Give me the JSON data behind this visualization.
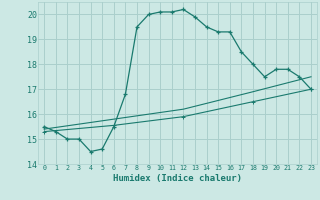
{
  "xlabel": "Humidex (Indice chaleur)",
  "ylabel": "",
  "bg_color": "#cce8e4",
  "grid_color": "#aacfcc",
  "line_color": "#1a7a6e",
  "xlim": [
    -0.5,
    23.5
  ],
  "ylim": [
    14,
    20.5
  ],
  "xticks": [
    0,
    1,
    2,
    3,
    4,
    5,
    6,
    7,
    8,
    9,
    10,
    11,
    12,
    13,
    14,
    15,
    16,
    17,
    18,
    19,
    20,
    21,
    22,
    23
  ],
  "yticks": [
    14,
    15,
    16,
    17,
    18,
    19,
    20
  ],
  "line1_x": [
    0,
    1,
    2,
    3,
    4,
    5,
    6,
    7,
    8,
    9,
    10,
    11,
    12,
    13,
    14,
    15,
    16,
    17,
    18,
    19,
    20,
    21,
    22,
    23
  ],
  "line1_y": [
    15.5,
    15.3,
    15.0,
    15.0,
    14.5,
    14.6,
    15.5,
    16.8,
    19.5,
    20.0,
    20.1,
    20.1,
    20.2,
    19.9,
    19.5,
    19.3,
    19.3,
    18.5,
    18.0,
    17.5,
    17.8,
    17.8,
    17.5,
    17.0
  ],
  "line2_x": [
    0,
    6,
    12,
    18,
    23
  ],
  "line2_y": [
    15.3,
    15.55,
    15.9,
    16.5,
    17.0
  ],
  "line3_x": [
    0,
    6,
    12,
    18,
    23
  ],
  "line3_y": [
    15.4,
    15.8,
    16.2,
    16.9,
    17.5
  ]
}
